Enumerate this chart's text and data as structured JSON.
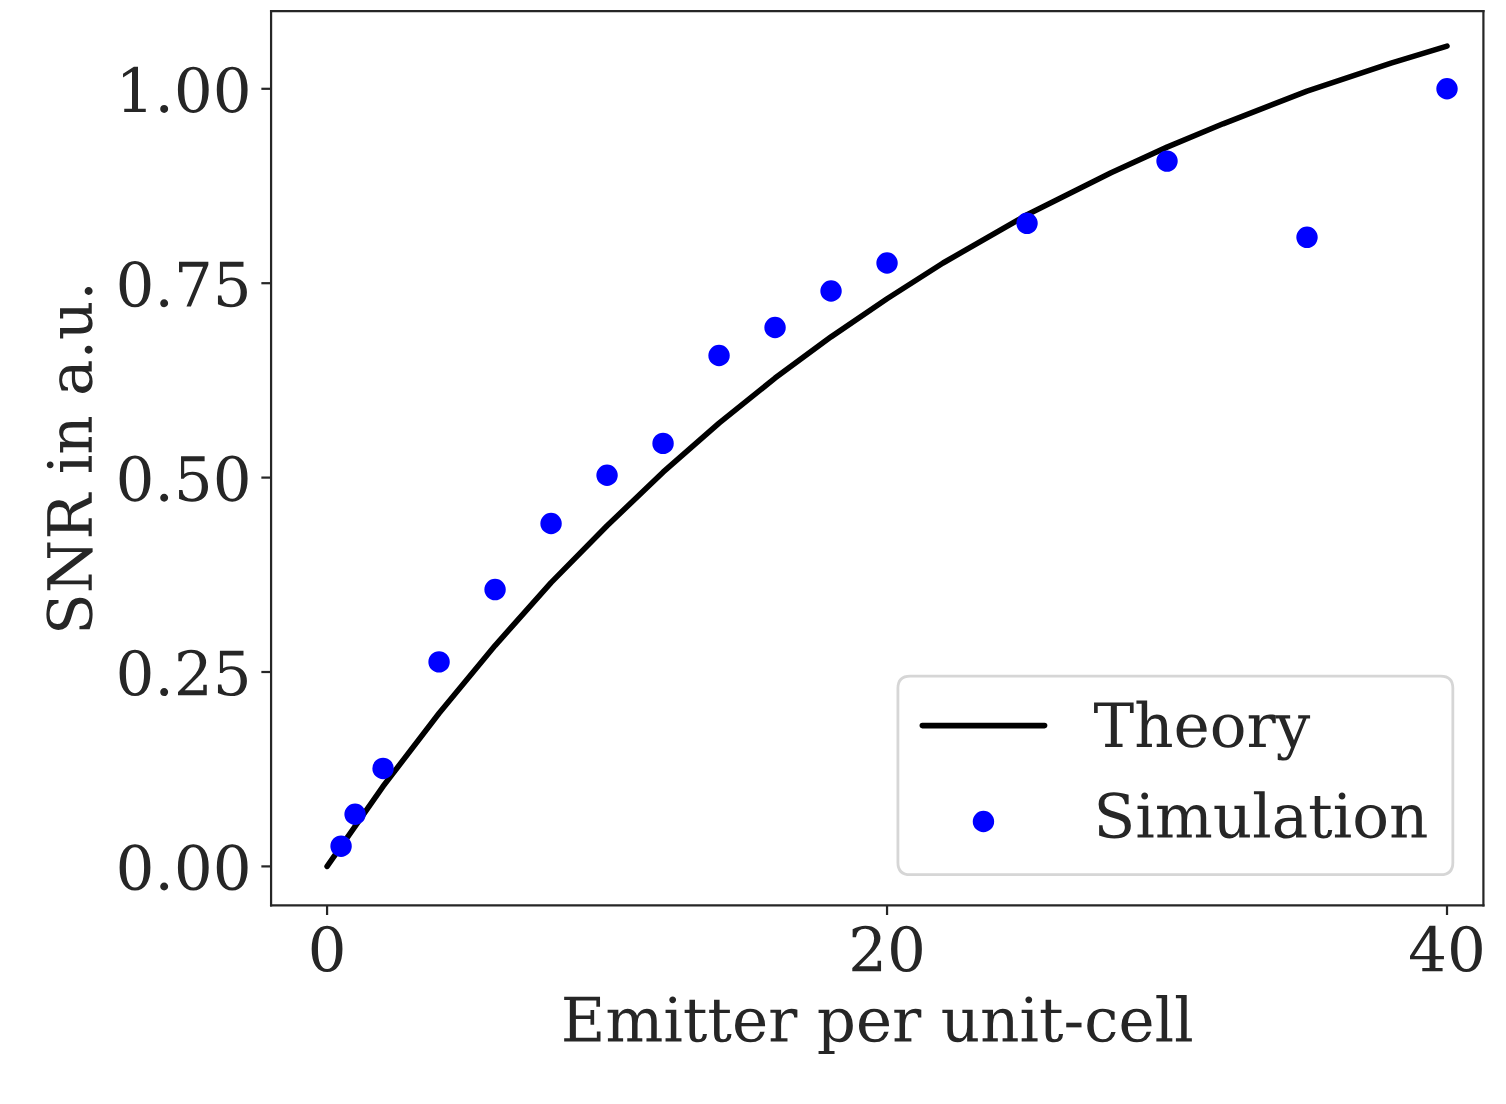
{
  "chart_data": {
    "type": "line",
    "xlabel": "Emitter per unit-cell",
    "ylabel": "SNR in a.u.",
    "xlim": [
      -2,
      41.3
    ],
    "ylim": [
      -0.05,
      1.1
    ],
    "xticks": [
      0,
      20,
      40
    ],
    "yticks": [
      {
        "value": 0,
        "label": "0.00"
      },
      {
        "value": 0.25,
        "label": "0.25"
      },
      {
        "value": 0.5,
        "label": "0.50"
      },
      {
        "value": 0.75,
        "label": "0.75"
      },
      {
        "value": 1.0,
        "label": "1.00"
      }
    ],
    "grid": false,
    "legend": "bottom right",
    "series": [
      {
        "name": "Theory",
        "color": "#000000",
        "line_style": "solid",
        "marker": "none",
        "x": [
          0,
          2,
          4,
          6,
          8,
          10,
          12,
          14,
          16,
          18,
          20,
          22,
          25,
          28,
          30,
          32,
          35,
          38,
          40
        ],
        "values": [
          0,
          0.103,
          0.197,
          0.284,
          0.365,
          0.438,
          0.507,
          0.57,
          0.628,
          0.681,
          0.73,
          0.776,
          0.838,
          0.892,
          0.925,
          0.955,
          0.997,
          1.033,
          1.055
        ]
      },
      {
        "name": "Simulation",
        "type": "scatter",
        "color": "#0000ff",
        "marker": "circle",
        "x": [
          0.5,
          1,
          2,
          4,
          6,
          8,
          10,
          12,
          14,
          16,
          18,
          20,
          25,
          30,
          35,
          40
        ],
        "values": [
          0.026,
          0.067,
          0.126,
          0.263,
          0.356,
          0.441,
          0.503,
          0.544,
          0.657,
          0.693,
          0.74,
          0.776,
          0.827,
          0.907,
          0.809,
          1.0
        ]
      }
    ]
  }
}
